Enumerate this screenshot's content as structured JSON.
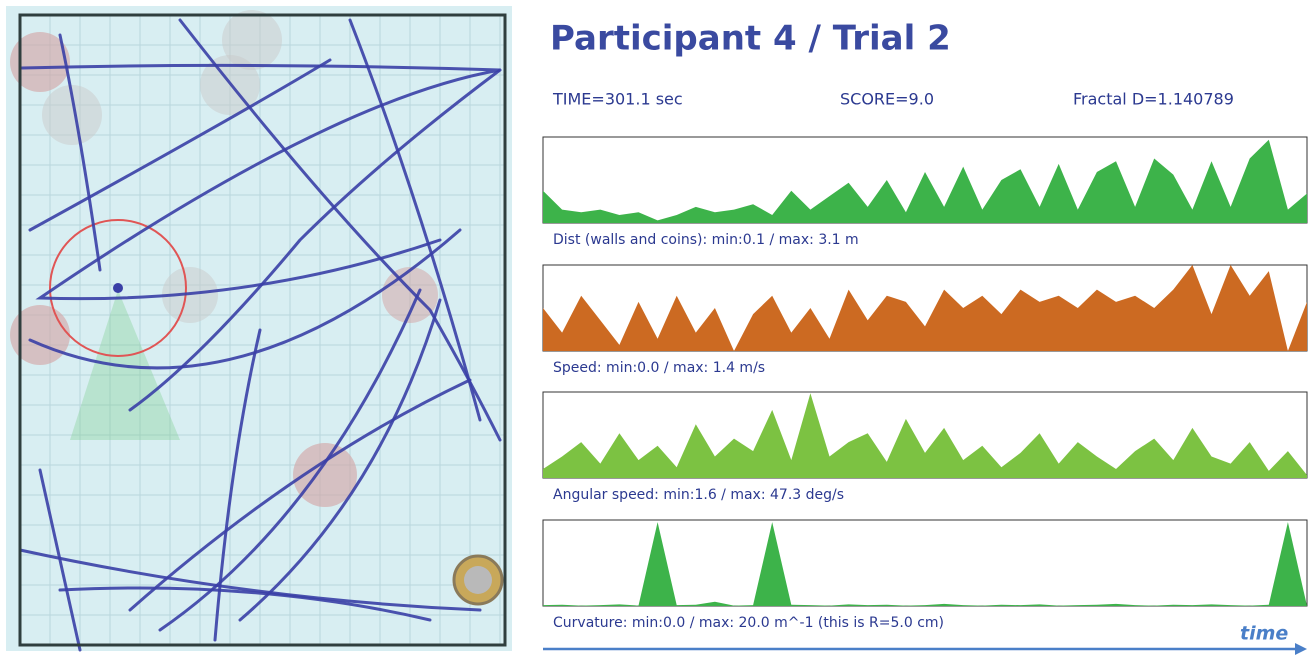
{
  "title": "Participant 4 / Trial 2",
  "stats": [
    "TIME=301.1 sec",
    "SCORE=9.0",
    "Fractal D=1.140789"
  ],
  "time_label": "time",
  "chart_data": [
    {
      "type": "area",
      "caption": "Dist (walls and coins): min:0.1  /  max: 3.1 m",
      "color": "#3db34a",
      "ylim": [
        0,
        3.2
      ],
      "values": [
        1.2,
        0.5,
        0.4,
        0.5,
        0.3,
        0.4,
        0.1,
        0.3,
        0.6,
        0.4,
        0.5,
        0.7,
        0.3,
        1.2,
        0.5,
        1.0,
        1.5,
        0.6,
        1.6,
        0.4,
        1.9,
        0.6,
        2.1,
        0.5,
        1.6,
        2.0,
        0.6,
        2.2,
        0.5,
        1.9,
        2.3,
        0.6,
        2.4,
        1.8,
        0.5,
        2.3,
        0.6,
        2.4,
        3.1,
        0.5,
        1.1
      ]
    },
    {
      "type": "area",
      "caption": "Speed: min:0.0  /  max: 1.4 m/s",
      "color": "#cc6a22",
      "ylim": [
        0,
        1.4
      ],
      "values": [
        0.7,
        0.3,
        0.9,
        0.5,
        0.1,
        0.8,
        0.2,
        0.9,
        0.3,
        0.7,
        0.0,
        0.6,
        0.9,
        0.3,
        0.7,
        0.2,
        1.0,
        0.5,
        0.9,
        0.8,
        0.4,
        1.0,
        0.7,
        0.9,
        0.6,
        1.0,
        0.8,
        0.9,
        0.7,
        1.0,
        0.8,
        0.9,
        0.7,
        1.0,
        1.4,
        0.6,
        1.4,
        0.9,
        1.3,
        0.0,
        0.8
      ]
    },
    {
      "type": "area",
      "caption": "Angular speed: min:1.6  /  max: 47.3 deg/s",
      "color": "#7cc242",
      "ylim": [
        0,
        48
      ],
      "values": [
        5,
        12,
        20,
        8,
        25,
        10,
        18,
        6,
        30,
        12,
        22,
        15,
        38,
        10,
        47.3,
        12,
        20,
        25,
        9,
        33,
        14,
        28,
        10,
        18,
        6,
        14,
        25,
        8,
        20,
        12,
        5,
        15,
        22,
        10,
        28,
        12,
        8,
        20,
        4,
        15,
        1.6
      ]
    },
    {
      "type": "area",
      "caption": "Curvature: min:0.0  /  max: 20.0 m^-1 (this is R=5.0 cm)",
      "color": "#3db34a",
      "ylim": [
        0,
        20.5
      ],
      "values": [
        0.2,
        0.3,
        0.1,
        0.2,
        0.4,
        0.1,
        20.0,
        0.2,
        0.3,
        1.0,
        0.1,
        0.2,
        20.0,
        0.3,
        0.2,
        0.1,
        0.4,
        0.2,
        0.3,
        0.1,
        0.2,
        0.5,
        0.2,
        0.1,
        0.3,
        0.2,
        0.4,
        0.1,
        0.2,
        0.3,
        0.5,
        0.2,
        0.1,
        0.3,
        0.2,
        0.4,
        0.2,
        0.1,
        0.3,
        20.0,
        0.0
      ]
    }
  ]
}
